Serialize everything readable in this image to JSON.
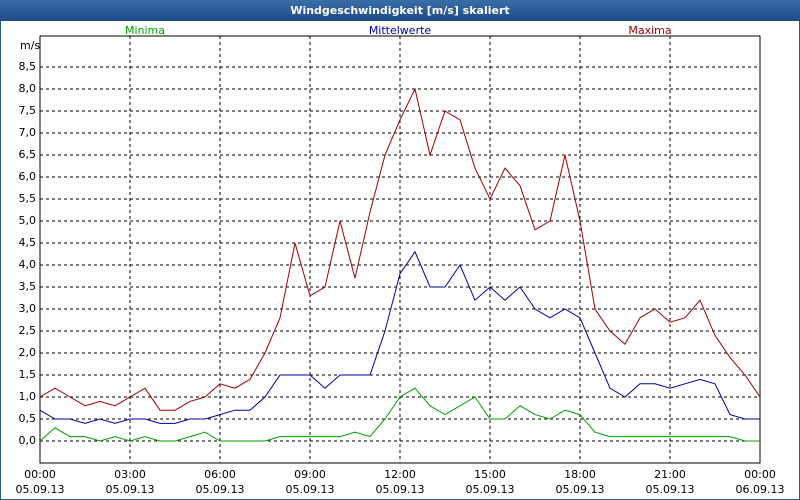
{
  "chart_data": {
    "type": "line",
    "title": "Windgeschwindigkeit [m/s] skaliert",
    "y_unit": "m/s",
    "x": [
      0,
      0.5,
      1,
      1.5,
      2,
      2.5,
      3,
      3.5,
      4,
      4.5,
      5,
      5.5,
      6,
      6.5,
      7,
      7.5,
      8,
      8.5,
      9,
      9.5,
      10,
      10.5,
      11,
      11.5,
      12,
      12.5,
      13,
      13.5,
      14,
      14.5,
      15,
      15.5,
      16,
      16.5,
      17,
      17.5,
      18,
      18.5,
      19,
      19.5,
      20,
      20.5,
      21,
      21.5,
      22,
      22.5,
      23,
      23.5,
      24
    ],
    "series": [
      {
        "name": "Minima",
        "color": "#00a000",
        "values": [
          0.0,
          0.3,
          0.1,
          0.1,
          0.0,
          0.1,
          0.0,
          0.1,
          0.0,
          0.0,
          0.1,
          0.2,
          0.0,
          0.0,
          0.0,
          0.0,
          0.1,
          0.1,
          0.1,
          0.1,
          0.1,
          0.2,
          0.1,
          0.5,
          1.0,
          1.2,
          0.8,
          0.6,
          0.8,
          1.0,
          0.5,
          0.5,
          0.8,
          0.6,
          0.5,
          0.7,
          0.6,
          0.2,
          0.1,
          0.1,
          0.1,
          0.1,
          0.1,
          0.1,
          0.1,
          0.1,
          0.1,
          0.0,
          0.0
        ]
      },
      {
        "name": "Mittelwerte",
        "color": "#0000a0",
        "values": [
          0.7,
          0.5,
          0.5,
          0.4,
          0.5,
          0.4,
          0.5,
          0.5,
          0.4,
          0.4,
          0.5,
          0.5,
          0.6,
          0.7,
          0.7,
          1.0,
          1.5,
          1.5,
          1.5,
          1.2,
          1.5,
          1.5,
          1.5,
          2.5,
          3.8,
          4.3,
          3.5,
          3.5,
          4.0,
          3.2,
          3.5,
          3.2,
          3.5,
          3.0,
          2.8,
          3.0,
          2.8,
          2.0,
          1.2,
          1.0,
          1.3,
          1.3,
          1.2,
          1.3,
          1.4,
          1.3,
          0.6,
          0.5,
          0.5
        ]
      },
      {
        "name": "Maxima",
        "color": "#a00000",
        "values": [
          1.0,
          1.2,
          1.0,
          0.8,
          0.9,
          0.8,
          1.0,
          1.2,
          0.7,
          0.7,
          0.9,
          1.0,
          1.3,
          1.2,
          1.4,
          2.0,
          2.8,
          4.5,
          3.3,
          3.5,
          5.0,
          3.7,
          5.2,
          6.5,
          7.3,
          8.0,
          6.5,
          7.5,
          7.3,
          6.2,
          5.5,
          6.2,
          5.8,
          4.8,
          5.0,
          6.5,
          5.0,
          3.0,
          2.5,
          2.2,
          2.8,
          3.0,
          2.7,
          2.8,
          3.2,
          2.4,
          1.9,
          1.5,
          1.0
        ]
      }
    ],
    "xlim": [
      0,
      24
    ],
    "xticks": [
      {
        "value": 0,
        "label": "00:00",
        "date": "05.09.13"
      },
      {
        "value": 3,
        "label": "03:00",
        "date": "05.09.13"
      },
      {
        "value": 6,
        "label": "06:00",
        "date": "05.09.13"
      },
      {
        "value": 9,
        "label": "09:00",
        "date": "05.09.13"
      },
      {
        "value": 12,
        "label": "12:00",
        "date": "05.09.13"
      },
      {
        "value": 15,
        "label": "15:00",
        "date": "05.09.13"
      },
      {
        "value": 18,
        "label": "18:00",
        "date": "05.09.13"
      },
      {
        "value": 21,
        "label": "21:00",
        "date": "05.09.13"
      },
      {
        "value": 24,
        "label": "00:00",
        "date": "06.09.13"
      }
    ],
    "ylim": [
      -0.5,
      9.0
    ],
    "yticks": [
      {
        "value": 0,
        "label": "0,0"
      },
      {
        "value": 0.5,
        "label": "0,5"
      },
      {
        "value": 1,
        "label": "1,0"
      },
      {
        "value": 1.5,
        "label": "1,5"
      },
      {
        "value": 2,
        "label": "2,0"
      },
      {
        "value": 2.5,
        "label": "2,5"
      },
      {
        "value": 3,
        "label": "3,0"
      },
      {
        "value": 3.5,
        "label": "3,5"
      },
      {
        "value": 4,
        "label": "4,0"
      },
      {
        "value": 4.5,
        "label": "4,5"
      },
      {
        "value": 5,
        "label": "5,0"
      },
      {
        "value": 5.5,
        "label": "5,5"
      },
      {
        "value": 6,
        "label": "6,0"
      },
      {
        "value": 6.5,
        "label": "6,5"
      },
      {
        "value": 7,
        "label": "7,0"
      },
      {
        "value": 7.5,
        "label": "7,5"
      },
      {
        "value": 8,
        "label": "8,0"
      },
      {
        "value": 8.5,
        "label": "8,5"
      }
    ],
    "grid": true
  }
}
